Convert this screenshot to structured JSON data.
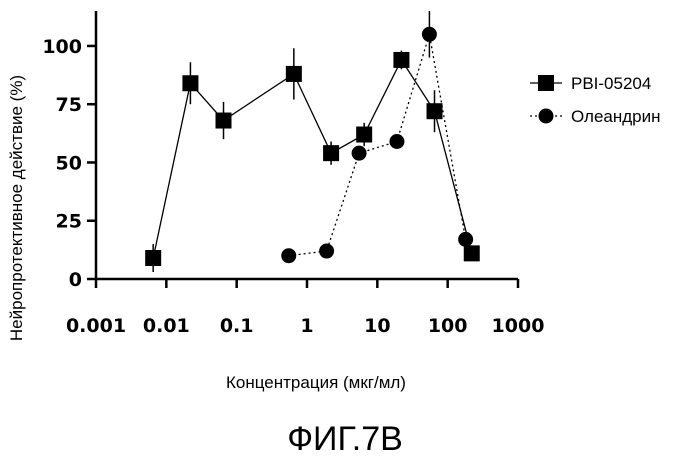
{
  "chart_data": {
    "type": "line",
    "title": "",
    "xlabel": "Концентрация (мкг/мл)",
    "ylabel": "Нейропротективное действие (%)",
    "x_scale": "log",
    "xlim": [
      0.001,
      1000
    ],
    "ylim": [
      0,
      115
    ],
    "x_ticks": [
      "0.001",
      "0.01",
      "0.1",
      "1",
      "10",
      "100",
      "1000"
    ],
    "x_tick_values": [
      0.001,
      0.01,
      0.1,
      1,
      10,
      100,
      1000
    ],
    "y_ticks": [
      "0",
      "25",
      "50",
      "75",
      "100"
    ],
    "y_tick_values": [
      0,
      25,
      50,
      75,
      100
    ],
    "legend_position": "right",
    "grid": false,
    "series": [
      {
        "name": "PBI-05204",
        "marker": "square",
        "line_style": "solid",
        "color": "#000000",
        "x": [
          0.0065,
          0.022,
          0.065,
          0.65,
          2.2,
          6.5,
          22,
          65,
          220
        ],
        "y": [
          9,
          84,
          68,
          88,
          54,
          62,
          94,
          72,
          11
        ],
        "error": [
          6,
          9,
          8,
          11,
          5,
          5,
          4,
          9,
          3
        ]
      },
      {
        "name": "Олеандрин",
        "marker": "circle",
        "line_style": "dotted",
        "color": "#000000",
        "x": [
          0.55,
          1.9,
          5.5,
          19,
          55,
          180
        ],
        "y": [
          10,
          12,
          54,
          59,
          105,
          17
        ],
        "error": [
          0,
          0,
          0,
          0,
          10,
          0
        ]
      }
    ]
  },
  "caption": "ФИГ.7B"
}
